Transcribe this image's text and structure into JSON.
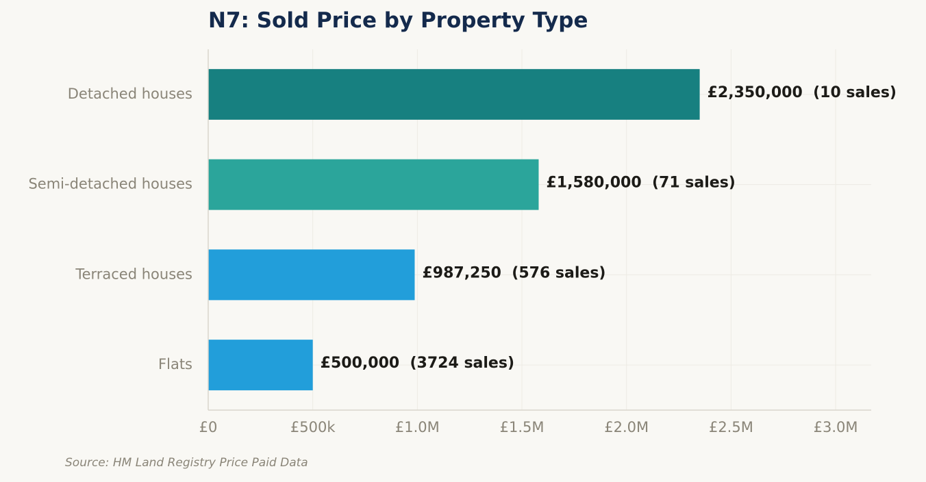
{
  "chart_data": {
    "type": "bar",
    "orientation": "horizontal",
    "title": "N7: Sold Price by Property Type",
    "categories": [
      "Detached houses",
      "Semi-detached houses",
      "Terraced houses",
      "Flats"
    ],
    "values": [
      2350000,
      1580000,
      987250,
      500000
    ],
    "value_labels": [
      "£2,350,000  (10 sales)",
      "£1,580,000  (71 sales)",
      "£987,250  (576 sales)",
      "£500,000  (3724 sales)"
    ],
    "sales": [
      10,
      71,
      576,
      3724
    ],
    "bar_colors": [
      "#178080",
      "#2ba59b",
      "#229eda",
      "#229eda"
    ],
    "xlim": [
      0,
      3170000
    ],
    "xticks": [
      0,
      500000,
      1000000,
      1500000,
      2000000,
      2500000,
      3000000
    ],
    "xtick_labels": [
      "£0",
      "£500k",
      "£1.0M",
      "£1.5M",
      "£2.0M",
      "£2.5M",
      "£3.0M"
    ],
    "grid": true,
    "xlabel": "",
    "ylabel": ""
  },
  "footer": {
    "source": "Source: HM Land Registry Price Paid Data"
  }
}
